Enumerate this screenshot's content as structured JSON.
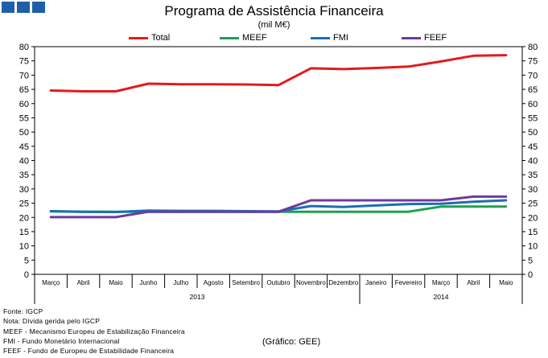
{
  "colors": {
    "Total": "#e31b1b",
    "MEEF": "#1fa050",
    "FMI": "#1a6fb5",
    "FEEF": "#6f3aa0",
    "logo": "#1f5fa8"
  },
  "chart_data": {
    "type": "line",
    "title": "Programa de Assistência Financeira",
    "subtitle": "(mil M€)",
    "categories": [
      "Março",
      "Abril",
      "Maio",
      "Junho",
      "Julho",
      "Agosto",
      "Setembro",
      "Outubro",
      "Novembro",
      "Dezembro",
      "Janeiro",
      "Fevereiro",
      "Março",
      "Abril",
      "Maio"
    ],
    "year_groups": [
      {
        "label": "2013",
        "start": 0,
        "end": 9
      },
      {
        "label": "2014",
        "start": 10,
        "end": 14
      }
    ],
    "ylim": [
      0,
      80
    ],
    "yticks": [
      0,
      5,
      10,
      15,
      20,
      25,
      30,
      35,
      40,
      45,
      50,
      55,
      60,
      65,
      70,
      75,
      80
    ],
    "series": [
      {
        "name": "Total",
        "values": [
          64.6,
          64.3,
          64.3,
          67.0,
          66.8,
          66.8,
          66.7,
          66.5,
          72.4,
          72.1,
          72.5,
          73.0,
          74.8,
          76.8,
          77.0
        ]
      },
      {
        "name": "MEEF",
        "values": [
          22.1,
          22.0,
          22.0,
          22.0,
          22.0,
          22.0,
          22.0,
          22.0,
          22.0,
          22.0,
          22.0,
          22.0,
          23.8,
          23.8,
          23.8
        ]
      },
      {
        "name": "FMI",
        "values": [
          22.2,
          22.0,
          21.9,
          22.4,
          22.3,
          22.3,
          22.2,
          22.1,
          24.0,
          23.7,
          24.2,
          24.7,
          24.8,
          25.5,
          26.0
        ]
      },
      {
        "name": "FEEF",
        "values": [
          20.1,
          20.1,
          20.1,
          22.0,
          22.0,
          22.0,
          22.0,
          22.0,
          26.0,
          26.0,
          26.0,
          26.0,
          26.0,
          27.3,
          27.3
        ]
      }
    ]
  },
  "notes": [
    "Fonte: IGCP",
    "Nota: Dívida gerida pelo IGCP",
    "MEEF - Mecanismo Europeu de Estabilização Financeira",
    "FMI - Fundo Monetário Internacional",
    "FEEF - Fundo de Europeu de Estabilidade Financeira"
  ],
  "source": "(Gráfico: GEE)"
}
